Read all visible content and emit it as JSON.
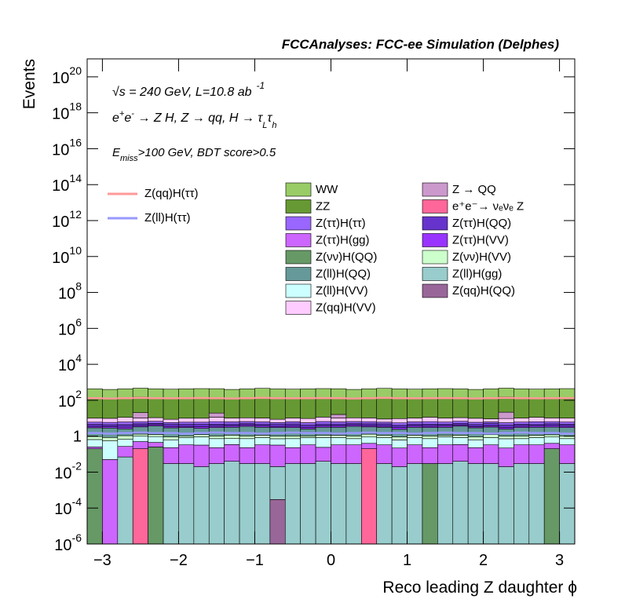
{
  "chart_data": {
    "type": "stacked_histogram",
    "title": "FCCAnalyses: FCC-ee Simulation (Delphes)",
    "annotations": [
      [
        "√s = 240 GeV, L=10.8 ab",
        "-1"
      ],
      [
        "e",
        "+",
        "e",
        "-",
        " → Z H, Z  → qq, H  → τ",
        "L",
        "τ",
        "h"
      ],
      [
        "E",
        "miss",
        ">100 GeV, BDT score>0.5"
      ]
    ],
    "xlabel": "Reco leading Z daughter ϕ",
    "ylabel": "Events",
    "log_y": true,
    "xlim": [
      -3.2,
      3.2
    ],
    "ylim": [
      1e-06,
      1e+21
    ],
    "xticks": [
      {
        "value": -3,
        "label": "−3"
      },
      {
        "value": -2,
        "label": "−2"
      },
      {
        "value": -1,
        "label": "−1"
      },
      0,
      1,
      2,
      3
    ],
    "yticks": [
      {
        "value": 1e-06,
        "label": "10",
        "exponent": "-6"
      },
      {
        "value": 0.0001,
        "label": "10",
        "exponent": "-4"
      },
      {
        "value": 0.01,
        "label": "10",
        "exponent": "-2"
      },
      1,
      {
        "value": 100.0,
        "label": "10",
        "exponent": "2"
      },
      {
        "value": 10000.0,
        "label": "10",
        "exponent": "4"
      },
      {
        "value": 1000000.0,
        "label": "10",
        "exponent": "6"
      },
      {
        "value": 100000000.0,
        "label": "10",
        "exponent": "8"
      },
      {
        "value": 10000000000.0,
        "label": "10",
        "exponent": "10"
      },
      {
        "value": 1000000000000.0,
        "label": "10",
        "exponent": "12"
      },
      {
        "value": 100000000000000.0,
        "label": "10",
        "exponent": "14"
      },
      {
        "value": 1e+16,
        "label": "10",
        "exponent": "16"
      },
      {
        "value": 1e+18,
        "label": "10",
        "exponent": "18"
      },
      {
        "value": 1e+20,
        "label": "10",
        "exponent": "20"
      }
    ],
    "bins": [
      -3.2,
      -3.0,
      -2.8,
      -2.6,
      -2.4,
      -2.2,
      -2.0,
      -1.8,
      -1.6,
      -1.4,
      -1.2,
      -1.0,
      -0.8,
      -0.6,
      -0.4,
      -0.2,
      0.0,
      0.2,
      0.4,
      0.6,
      0.8,
      1.0,
      1.2,
      1.4,
      1.6,
      1.8,
      2.0,
      2.2,
      2.4,
      2.6,
      2.8,
      3.0,
      3.2
    ],
    "series": [
      {
        "name": "Z(qq)H(QQ)",
        "color": "#996699",
        "values": [
          0,
          0,
          0,
          0,
          0,
          0,
          0,
          0,
          0,
          0,
          0,
          0,
          0.0003,
          0,
          0,
          0,
          0,
          0,
          0,
          0,
          0,
          0,
          0,
          0,
          0,
          0,
          0,
          0,
          0,
          0,
          0,
          0
        ]
      },
      {
        "name": "Z(ll)H(gg)",
        "color": "#99cccc",
        "values": [
          0,
          0,
          0.07,
          0,
          0,
          0.03,
          0.03,
          0.02,
          0.03,
          0.04,
          0.03,
          0.03,
          0.02,
          0.03,
          0.03,
          0.04,
          0.03,
          0.03,
          0,
          0.03,
          0.02,
          0.03,
          0,
          0.03,
          0.04,
          0.03,
          0.03,
          0.02,
          0.03,
          0.03,
          0,
          0.03
        ]
      },
      {
        "name": "e⁺e⁻→ νₑνₑ Z",
        "color": "#ff6699",
        "values": [
          0,
          0,
          0,
          0.2,
          0,
          0,
          0,
          0,
          0,
          0,
          0,
          0,
          0,
          0,
          0,
          0,
          0,
          0,
          0.2,
          0,
          0,
          0,
          0,
          0,
          0,
          0,
          0,
          0,
          0,
          0,
          0,
          0
        ]
      },
      {
        "name": "Z(νν)H(QQ)",
        "color": "#669966",
        "values": [
          0.2,
          0,
          0,
          0,
          0.25,
          0,
          0,
          0,
          0,
          0,
          0,
          0,
          0,
          0,
          0,
          0,
          0,
          0,
          0,
          0,
          0,
          0,
          0.03,
          0,
          0,
          0,
          0,
          0,
          0,
          0,
          0.2,
          0
        ]
      },
      {
        "name": "Z(ττ)H(gg)",
        "color": "#cc66ff",
        "values": [
          0.05,
          0.05,
          0.2,
          0.3,
          0.2,
          0.2,
          0.3,
          0.3,
          0.2,
          0.3,
          0.2,
          0.3,
          0.3,
          0.2,
          0.3,
          0.2,
          0.3,
          0.3,
          0.2,
          0.3,
          0.2,
          0.3,
          0.2,
          0.3,
          0.3,
          0.2,
          0.3,
          0.2,
          0.3,
          0.3,
          0.2,
          0.3
        ]
      },
      {
        "name": "Z(ll)H(VV)",
        "color": "#ccffff",
        "values": [
          0.4,
          0.5,
          0.4,
          0.5,
          0.5,
          0.4,
          0.5,
          0.6,
          0.5,
          0.4,
          0.5,
          0.5,
          0.4,
          0.5,
          0.5,
          0.6,
          0.5,
          0.4,
          0.5,
          0.5,
          0.4,
          0.5,
          0.5,
          0.6,
          0.5,
          0.4,
          0.5,
          0.5,
          0.4,
          0.5,
          0.5,
          0.4
        ]
      },
      {
        "name": "Z(νν)H(VV)",
        "color": "#ccffcc",
        "values": [
          0.3,
          0.3,
          0.4,
          0.3,
          0.3,
          0.3,
          0.2,
          0.3,
          0.3,
          0.4,
          0.3,
          0.3,
          0.3,
          0.3,
          0.2,
          0.3,
          0.3,
          0.3,
          0.4,
          0.3,
          0.3,
          0.3,
          0.3,
          0.2,
          0.3,
          0.3,
          0.4,
          0.3,
          0.3,
          0.3,
          0.3,
          0.3
        ]
      },
      {
        "name": "Z(ll)H(QQ)",
        "color": "#669999",
        "values": [
          2,
          2,
          1.5,
          2,
          2.5,
          2,
          2,
          1.5,
          2,
          2,
          2.5,
          2,
          2,
          2,
          1.5,
          2,
          2,
          2.5,
          2,
          2,
          1.5,
          2,
          2,
          2,
          2.5,
          2,
          2,
          1.5,
          2,
          2,
          2,
          2
        ]
      },
      {
        "name": "Z(ττ)H(VV)",
        "color": "#9933ff",
        "values": [
          0.6,
          0.5,
          0.6,
          0.6,
          0.7,
          0.6,
          0.5,
          0.6,
          0.6,
          0.6,
          0.7,
          0.6,
          0.5,
          0.6,
          0.6,
          0.6,
          0.6,
          0.7,
          0.6,
          0.5,
          0.6,
          0.6,
          0.6,
          0.7,
          0.6,
          0.5,
          0.6,
          0.6,
          0.6,
          0.6,
          0.7,
          0.6
        ]
      },
      {
        "name": "Z(ττ)H(QQ)",
        "color": "#6633cc",
        "values": [
          1,
          1,
          1.2,
          1,
          0.8,
          1,
          1,
          1.2,
          1,
          1,
          0.8,
          1,
          1,
          1.2,
          1,
          1,
          1,
          0.8,
          1,
          1.2,
          1,
          1,
          1,
          0.8,
          1,
          1,
          1.2,
          1,
          1,
          0.8,
          1,
          1
        ]
      },
      {
        "name": "Z(ττ)H(ττ)",
        "color": "#9966ff",
        "values": [
          1.5,
          1.5,
          1.8,
          1.5,
          1.5,
          1.2,
          1.5,
          1.5,
          1.8,
          1.5,
          1.5,
          1.5,
          1.2,
          1.5,
          1.5,
          1.8,
          1.5,
          1.5,
          1.5,
          1.2,
          1.5,
          1.5,
          1.8,
          1.5,
          1.5,
          1.5,
          1.2,
          1.5,
          1.5,
          1.8,
          1.5,
          1.5
        ]
      },
      {
        "name": "Z(qq)H(VV)",
        "color": "#ffccff",
        "values": [
          4,
          4,
          5,
          4,
          4,
          3,
          4,
          4,
          5,
          4,
          4,
          4,
          3,
          4,
          4,
          5,
          4,
          4,
          4,
          3,
          4,
          4,
          5,
          4,
          4,
          4,
          3,
          4,
          4,
          5,
          4,
          4
        ]
      },
      {
        "name": "Z → QQ",
        "color": "#cc99cc",
        "values": [
          0,
          0,
          0,
          10,
          0,
          0,
          0,
          0,
          8,
          0,
          0,
          0,
          0,
          0,
          0,
          0,
          6,
          0,
          0,
          0,
          0,
          0,
          0,
          0,
          0,
          0,
          0,
          12,
          0,
          0,
          0,
          0
        ]
      },
      {
        "name": "ZZ",
        "color": "#669933",
        "values": [
          120,
          110,
          120,
          130,
          120,
          115,
          120,
          125,
          120,
          110,
          120,
          130,
          120,
          115,
          120,
          125,
          120,
          110,
          120,
          130,
          120,
          115,
          120,
          125,
          120,
          110,
          120,
          130,
          120,
          115,
          120,
          125
        ]
      },
      {
        "name": "WW",
        "color": "#99cc66",
        "values": [
          300,
          280,
          300,
          320,
          300,
          290,
          300,
          310,
          300,
          280,
          300,
          320,
          300,
          290,
          300,
          310,
          300,
          280,
          300,
          320,
          300,
          290,
          300,
          310,
          300,
          280,
          300,
          320,
          300,
          290,
          300,
          310
        ]
      }
    ],
    "signals": [
      {
        "name": "Z(qq)H(ττ)",
        "color": "#ff9999",
        "values": [
          130,
          125,
          130,
          135,
          130,
          128,
          130,
          132,
          130,
          125,
          130,
          135,
          130,
          128,
          130,
          132,
          130,
          125,
          130,
          135,
          130,
          128,
          130,
          132,
          130,
          125,
          130,
          135,
          130,
          128,
          130,
          132
        ]
      },
      {
        "name": "Z(ll)H(ττ)",
        "color": "#9999ff",
        "values": [
          1.5,
          1.4,
          1.5,
          1.6,
          1.5,
          1.5,
          1.4,
          1.5,
          1.6,
          1.5,
          1.5,
          1.4,
          1.5,
          1.6,
          1.5,
          1.5,
          1.4,
          1.5,
          1.6,
          1.5,
          1.5,
          1.4,
          1.5,
          1.6,
          1.5,
          1.5,
          1.4,
          1.5,
          1.6,
          1.5,
          1.5,
          1.4
        ]
      }
    ]
  }
}
